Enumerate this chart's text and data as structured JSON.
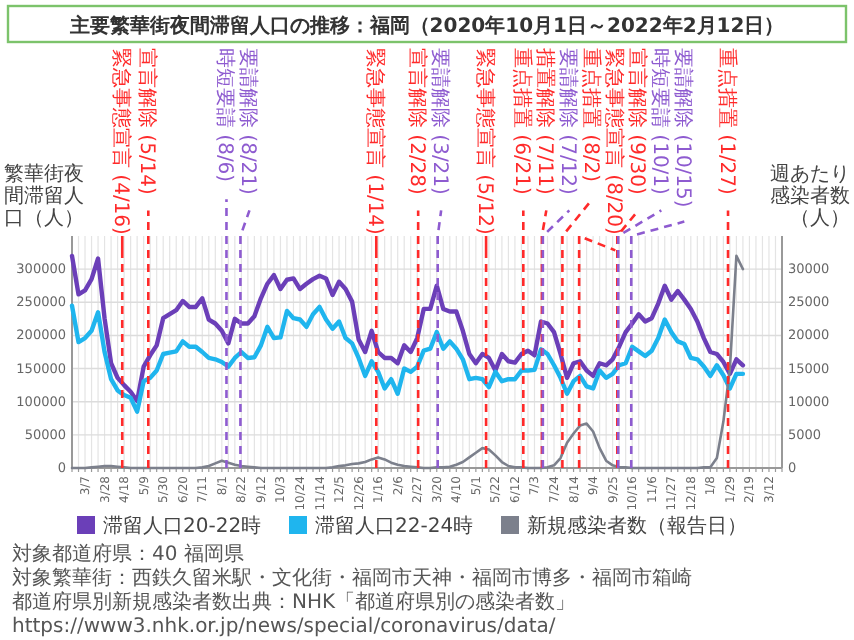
{
  "chart_data": {
    "type": "line",
    "title": "主要繁華街夜間滞留人口の推移：福岡（2020年10月1日～2022年2月12日）",
    "ylabel": "繁華街夜間滞留人口（人）",
    "y2label": "週あたり感染者数（人）",
    "x": [
      "2020-02-22",
      "2020-02-29",
      "2020-03-07",
      "2020-03-14",
      "2020-03-21",
      "2020-03-28",
      "2020-04-04",
      "2020-04-11",
      "2020-04-18",
      "2020-04-25",
      "2020-05-02",
      "2020-05-09",
      "2020-05-16",
      "2020-05-23",
      "2020-05-30",
      "2020-06-06",
      "2020-06-13",
      "2020-06-20",
      "2020-06-27",
      "2020-07-04",
      "2020-07-11",
      "2020-07-18",
      "2020-07-25",
      "2020-08-01",
      "2020-08-08",
      "2020-08-15",
      "2020-08-22",
      "2020-08-29",
      "2020-09-05",
      "2020-09-12",
      "2020-09-19",
      "2020-09-26",
      "2020-10-03",
      "2020-10-10",
      "2020-10-17",
      "2020-10-24",
      "2020-10-31",
      "2020-11-07",
      "2020-11-14",
      "2020-11-21",
      "2020-11-28",
      "2020-12-05",
      "2020-12-12",
      "2020-12-19",
      "2020-12-26",
      "2021-01-02",
      "2021-01-09",
      "2021-01-16",
      "2021-01-23",
      "2021-01-30",
      "2021-02-06",
      "2021-02-13",
      "2021-02-20",
      "2021-02-27",
      "2021-03-06",
      "2021-03-13",
      "2021-03-20",
      "2021-03-27",
      "2021-04-03",
      "2021-04-10",
      "2021-04-17",
      "2021-04-24",
      "2021-05-01",
      "2021-05-08",
      "2021-05-15",
      "2021-05-22",
      "2021-05-29",
      "2021-06-05",
      "2021-06-12",
      "2021-06-19",
      "2021-06-26",
      "2021-07-03",
      "2021-07-10",
      "2021-07-17",
      "2021-07-24",
      "2021-07-31",
      "2021-08-07",
      "2021-08-14",
      "2021-08-21",
      "2021-08-28",
      "2021-09-04",
      "2021-09-11",
      "2021-09-18",
      "2021-09-25",
      "2021-10-02",
      "2021-10-09",
      "2021-10-16",
      "2021-10-23",
      "2021-10-30",
      "2021-11-06",
      "2021-11-13",
      "2021-11-20",
      "2021-11-27",
      "2021-12-04",
      "2021-12-11",
      "2021-12-18",
      "2021-12-25",
      "2022-01-01",
      "2022-01-08",
      "2022-01-15",
      "2022-01-22",
      "2022-01-29",
      "2022-02-05",
      "2022-02-12"
    ],
    "series": [
      {
        "name": "滞留人口20-22時",
        "color": "#6b3fb8",
        "values": [
          320000,
          262000,
          268000,
          285000,
          316000,
          226000,
          158000,
          136000,
          125000,
          115000,
          101000,
          153000,
          170000,
          185000,
          226000,
          232000,
          238000,
          252000,
          243000,
          243000,
          256000,
          224000,
          218000,
          207000,
          188000,
          225000,
          218000,
          218000,
          229000,
          256000,
          278000,
          291000,
          270000,
          284000,
          286000,
          270000,
          278000,
          285000,
          290000,
          286000,
          261000,
          281000,
          270000,
          251000,
          194000,
          175000,
          207000,
          175000,
          166000,
          166000,
          158000,
          185000,
          175000,
          196000,
          240000,
          240000,
          275000,
          240000,
          236000,
          236000,
          207000,
          172000,
          158000,
          172000,
          166000,
          147000,
          172000,
          161000,
          159000,
          172000,
          177000,
          170000,
          221000,
          218000,
          205000,
          172000,
          136000,
          158000,
          161000,
          147000,
          139000,
          158000,
          155000,
          164000,
          183000,
          205000,
          218000,
          232000,
          221000,
          226000,
          248000,
          275000,
          254000,
          267000,
          254000,
          240000,
          221000,
          196000,
          175000,
          172000,
          160000,
          142000,
          164000,
          155000
        ]
      },
      {
        "name": "滞留人口22-24時",
        "color": "#1fb5ee",
        "values": [
          245000,
          190000,
          196000,
          207000,
          235000,
          175000,
          134000,
          117000,
          110000,
          106000,
          85000,
          131000,
          136000,
          147000,
          172000,
          174000,
          176000,
          191000,
          183000,
          183000,
          175000,
          166000,
          164000,
          160000,
          153000,
          166000,
          175000,
          166000,
          167000,
          185000,
          213000,
          196000,
          197000,
          237000,
          226000,
          224000,
          213000,
          232000,
          243000,
          224000,
          210000,
          221000,
          196000,
          188000,
          166000,
          139000,
          161000,
          145000,
          120000,
          134000,
          112000,
          150000,
          145000,
          153000,
          177000,
          180000,
          205000,
          180000,
          191000,
          180000,
          164000,
          134000,
          136000,
          134000,
          122000,
          145000,
          131000,
          134000,
          134000,
          147000,
          147000,
          148000,
          179000,
          172000,
          155000,
          136000,
          112000,
          131000,
          139000,
          123000,
          120000,
          147000,
          136000,
          142000,
          155000,
          158000,
          183000,
          176000,
          169000,
          177000,
          196000,
          224000,
          205000,
          191000,
          187000,
          166000,
          164000,
          153000,
          139000,
          155000,
          140000,
          120000,
          142000,
          142000
        ]
      },
      {
        "name": "新規感染者数（報告日）",
        "color": "#7c808c",
        "axis": "y2",
        "values": [
          0,
          0,
          0,
          100,
          200,
          300,
          300,
          200,
          100,
          0,
          0,
          0,
          0,
          0,
          0,
          0,
          0,
          0,
          0,
          0,
          100,
          300,
          700,
          1100,
          800,
          500,
          300,
          200,
          100,
          0,
          0,
          0,
          0,
          0,
          0,
          0,
          0,
          0,
          0,
          0,
          100,
          300,
          400,
          600,
          700,
          900,
          1300,
          1600,
          1300,
          800,
          500,
          300,
          200,
          100,
          0,
          0,
          100,
          100,
          200,
          500,
          900,
          1600,
          2300,
          3000,
          2800,
          1900,
          900,
          300,
          100,
          100,
          0,
          0,
          0,
          100,
          400,
          1500,
          3800,
          5200,
          6400,
          6700,
          5500,
          3000,
          1100,
          400,
          100,
          100,
          0,
          0,
          0,
          0,
          0,
          0,
          0,
          0,
          0,
          0,
          0,
          100,
          100,
          1500,
          7000,
          15000,
          32000,
          30000
        ]
      }
    ],
    "xlim": [
      "2020-02-22",
      "2022-03-26"
    ],
    "xticks": [
      {
        "value": "2020-02-22",
        "label": null
      },
      {
        "value": "2020-02-29",
        "label": null
      },
      {
        "value": "2020-03-07",
        "label": "3/7"
      },
      {
        "value": "2020-03-14",
        "label": null
      },
      {
        "value": "2020-03-21",
        "label": null
      },
      {
        "value": "2020-03-28",
        "label": "3/28"
      },
      {
        "value": "2020-04-04",
        "label": null
      },
      {
        "value": "2020-04-11",
        "label": null
      },
      {
        "value": "2020-04-18",
        "label": "4/18"
      },
      {
        "value": "2020-04-25",
        "label": null
      },
      {
        "value": "2020-05-02",
        "label": null
      },
      {
        "value": "2020-05-09",
        "label": "5/9"
      },
      {
        "value": "2020-05-16",
        "label": null
      },
      {
        "value": "2020-05-23",
        "label": null
      },
      {
        "value": "2020-05-30",
        "label": "5/30"
      },
      {
        "value": "2020-06-06",
        "label": null
      },
      {
        "value": "2020-06-13",
        "label": null
      },
      {
        "value": "2020-06-20",
        "label": "6/20"
      },
      {
        "value": "2020-06-27",
        "label": null
      },
      {
        "value": "2020-07-04",
        "label": null
      },
      {
        "value": "2020-07-11",
        "label": "7/11"
      },
      {
        "value": "2020-07-18",
        "label": null
      },
      {
        "value": "2020-07-25",
        "label": null
      },
      {
        "value": "2020-08-01",
        "label": "8/1"
      },
      {
        "value": "2020-08-08",
        "label": null
      },
      {
        "value": "2020-08-15",
        "label": null
      },
      {
        "value": "2020-08-22",
        "label": "8/22"
      },
      {
        "value": "2020-08-29",
        "label": null
      },
      {
        "value": "2020-09-05",
        "label": null
      },
      {
        "value": "2020-09-12",
        "label": "9/12"
      },
      {
        "value": "2020-09-19",
        "label": null
      },
      {
        "value": "2020-09-26",
        "label": null
      },
      {
        "value": "2020-10-03",
        "label": "10/3"
      },
      {
        "value": "2020-10-10",
        "label": null
      },
      {
        "value": "2020-10-17",
        "label": null
      },
      {
        "value": "2020-10-24",
        "label": "10/24"
      },
      {
        "value": "2020-10-31",
        "label": null
      },
      {
        "value": "2020-11-07",
        "label": null
      },
      {
        "value": "2020-11-14",
        "label": "11/14"
      },
      {
        "value": "2020-11-21",
        "label": null
      },
      {
        "value": "2020-11-28",
        "label": null
      },
      {
        "value": "2020-12-05",
        "label": "12/5"
      },
      {
        "value": "2020-12-12",
        "label": null
      },
      {
        "value": "2020-12-19",
        "label": null
      },
      {
        "value": "2020-12-26",
        "label": "12/26"
      },
      {
        "value": "2021-01-02",
        "label": null
      },
      {
        "value": "2021-01-09",
        "label": null
      },
      {
        "value": "2021-01-16",
        "label": "1/16"
      },
      {
        "value": "2021-01-23",
        "label": null
      },
      {
        "value": "2021-01-30",
        "label": null
      },
      {
        "value": "2021-02-06",
        "label": "2/6"
      },
      {
        "value": "2021-02-13",
        "label": null
      },
      {
        "value": "2021-02-20",
        "label": null
      },
      {
        "value": "2021-02-27",
        "label": "2/27"
      },
      {
        "value": "2021-03-06",
        "label": null
      },
      {
        "value": "2021-03-13",
        "label": null
      },
      {
        "value": "2021-03-20",
        "label": "3/20"
      },
      {
        "value": "2021-03-27",
        "label": null
      },
      {
        "value": "2021-04-03",
        "label": null
      },
      {
        "value": "2021-04-10",
        "label": "4/10"
      },
      {
        "value": "2021-04-17",
        "label": null
      },
      {
        "value": "2021-04-24",
        "label": null
      },
      {
        "value": "2021-05-01",
        "label": "5/1"
      },
      {
        "value": "2021-05-08",
        "label": null
      },
      {
        "value": "2021-05-15",
        "label": null
      },
      {
        "value": "2021-05-22",
        "label": "5/22"
      },
      {
        "value": "2021-05-29",
        "label": null
      },
      {
        "value": "2021-06-05",
        "label": null
      },
      {
        "value": "2021-06-12",
        "label": "6/12"
      },
      {
        "value": "2021-06-19",
        "label": null
      },
      {
        "value": "2021-06-26",
        "label": null
      },
      {
        "value": "2021-07-03",
        "label": "7/3"
      },
      {
        "value": "2021-07-10",
        "label": null
      },
      {
        "value": "2021-07-17",
        "label": null
      },
      {
        "value": "2021-07-24",
        "label": "7/24"
      },
      {
        "value": "2021-07-31",
        "label": null
      },
      {
        "value": "2021-08-07",
        "label": null
      },
      {
        "value": "2021-08-14",
        "label": "8/14"
      },
      {
        "value": "2021-08-21",
        "label": null
      },
      {
        "value": "2021-08-28",
        "label": null
      },
      {
        "value": "2021-09-04",
        "label": "9/4"
      },
      {
        "value": "2021-09-11",
        "label": null
      },
      {
        "value": "2021-09-18",
        "label": null
      },
      {
        "value": "2021-09-25",
        "label": "9/25"
      },
      {
        "value": "2021-10-02",
        "label": null
      },
      {
        "value": "2021-10-09",
        "label": null
      },
      {
        "value": "2021-10-16",
        "label": "10/16"
      },
      {
        "value": "2021-10-23",
        "label": null
      },
      {
        "value": "2021-10-30",
        "label": null
      },
      {
        "value": "2021-11-06",
        "label": "11/6"
      },
      {
        "value": "2021-11-13",
        "label": null
      },
      {
        "value": "2021-11-20",
        "label": null
      },
      {
        "value": "2021-11-27",
        "label": "11/27"
      },
      {
        "value": "2021-12-04",
        "label": null
      },
      {
        "value": "2021-12-11",
        "label": null
      },
      {
        "value": "2021-12-18",
        "label": "12/18"
      },
      {
        "value": "2021-12-25",
        "label": null
      },
      {
        "value": "2022-01-01",
        "label": null
      },
      {
        "value": "2022-01-08",
        "label": "1/8"
      },
      {
        "value": "2022-01-15",
        "label": null
      },
      {
        "value": "2022-01-22",
        "label": null
      },
      {
        "value": "2022-01-29",
        "label": "1/29"
      },
      {
        "value": "2022-02-05",
        "label": null
      },
      {
        "value": "2022-02-12",
        "label": null
      },
      {
        "value": "2022-02-19",
        "label": "2/19"
      },
      {
        "value": "2022-02-26",
        "label": null
      },
      {
        "value": "2022-03-05",
        "label": null
      },
      {
        "value": "2022-03-12",
        "label": "3/12"
      },
      {
        "value": "2022-03-19",
        "label": null
      },
      {
        "value": "2022-03-26",
        "label": null
      }
    ],
    "ylim": [
      0,
      350000
    ],
    "yticks": [
      0,
      50000,
      100000,
      150000,
      200000,
      250000,
      300000
    ],
    "y2lim": [
      0,
      35000
    ],
    "y2ticks": [
      0,
      5000,
      10000,
      15000,
      20000,
      25000,
      30000
    ],
    "ref_lines": [
      {
        "axis": "x",
        "value": "2020-04-16",
        "label": "緊急事態宣言 (4/16)",
        "color": "#ff2a2a",
        "line_style": "dashed"
      },
      {
        "axis": "x",
        "value": "2020-05-14",
        "label": "宣言解除 (5/14)",
        "color": "#ff2a2a",
        "line_style": "dashed"
      },
      {
        "axis": "x",
        "value": "2020-08-06",
        "label": "時短要請 (8/6)",
        "color": "#8e5bd0",
        "line_style": "dashed"
      },
      {
        "axis": "x",
        "value": "2020-08-21",
        "label": "要請解除 (8/21)",
        "color": "#8e5bd0",
        "line_style": "dashed"
      },
      {
        "axis": "x",
        "value": "2021-01-14",
        "label": "緊急事態宣言 (1/14)",
        "color": "#ff2a2a",
        "line_style": "dashed"
      },
      {
        "axis": "x",
        "value": "2021-02-28",
        "label": "宣言解除 (2/28)",
        "color": "#ff2a2a",
        "line_style": "dashed"
      },
      {
        "axis": "x",
        "value": "2021-03-21",
        "label": "要請解除 (3/21)",
        "color": "#8e5bd0",
        "line_style": "dashed"
      },
      {
        "axis": "x",
        "value": "2021-05-12",
        "label": "緊急事態宣言 (5/12)",
        "color": "#ff2a2a",
        "line_style": "dashed"
      },
      {
        "axis": "x",
        "value": "2021-06-21",
        "label": "重点措置 (6/21)",
        "color": "#ff2a2a",
        "line_style": "dashed"
      },
      {
        "axis": "x",
        "value": "2021-07-11",
        "label": "措置解除 (7/11)",
        "color": "#ff2a2a",
        "line_style": "dashed"
      },
      {
        "axis": "x",
        "value": "2021-07-12",
        "label": "要請解除 (7/12)",
        "color": "#8e5bd0",
        "line_style": "dashed"
      },
      {
        "axis": "x",
        "value": "2021-08-02",
        "label": "重点措置 (8/2)",
        "color": "#ff2a2a",
        "line_style": "dashed"
      },
      {
        "axis": "x",
        "value": "2021-08-20",
        "label": "緊急事態宣言 (8/20)",
        "color": "#ff2a2a",
        "line_style": "dashed"
      },
      {
        "axis": "x",
        "value": "2021-09-30",
        "label": "宣言解除 (9/30)",
        "color": "#ff2a2a",
        "line_style": "dashed"
      },
      {
        "axis": "x",
        "value": "2021-10-01",
        "label": "時短要請 (10/1)",
        "color": "#8e5bd0",
        "line_style": "dashed"
      },
      {
        "axis": "x",
        "value": "2021-10-15",
        "label": "要請解除 (10/15)",
        "color": "#8e5bd0",
        "line_style": "dashed"
      },
      {
        "axis": "x",
        "value": "2022-01-27",
        "label": "重点措置 (1/27)",
        "color": "#ff2a2a",
        "line_style": "dashed"
      }
    ],
    "annotations": [
      "対象都道府県：40 福岡県",
      "対象繁華街：西鉄久留米駅・文化街・福岡市天神・福岡市博多・福岡市箱崎",
      "都道府県別新規感染者数出典：NHK「都道府県別の感染者数」 https://www3.nhk.or.jp/news/special/coronavirus/data/"
    ],
    "grid": true,
    "legend": "bottom"
  }
}
